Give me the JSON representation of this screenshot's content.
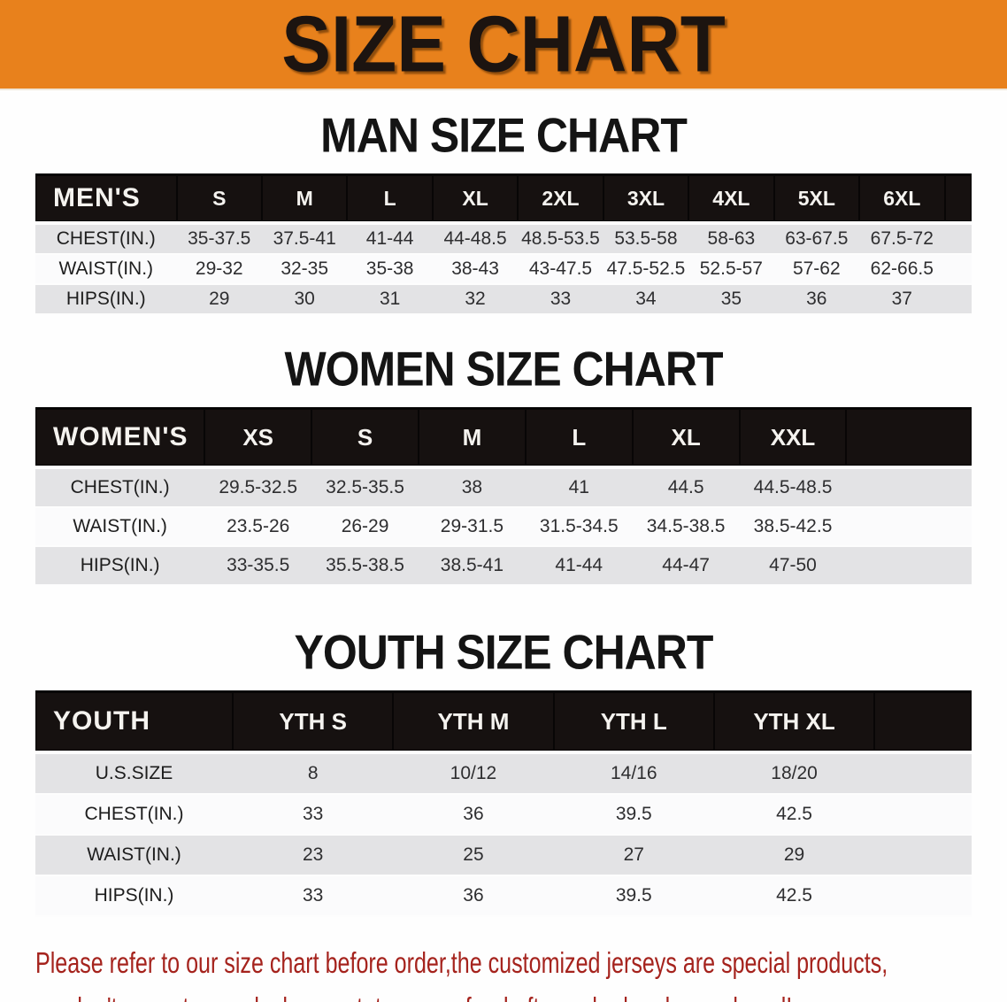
{
  "banner": {
    "title": "SIZE CHART",
    "background_color": "#e8811c",
    "text_color": "#1c1410"
  },
  "sections": {
    "men": {
      "title": "MAN SIZE CHART",
      "table": {
        "columns": [
          "MEN'S",
          "S",
          "M",
          "L",
          "XL",
          "2XL",
          "3XL",
          "4XL",
          "5XL",
          "6XL"
        ],
        "rows": [
          {
            "label": "CHEST(IN.)",
            "values": [
              "35-37.5",
              "37.5-41",
              "41-44",
              "44-48.5",
              "48.5-53.5",
              "53.5-58",
              "58-63",
              "63-67.5",
              "67.5-72"
            ]
          },
          {
            "label": "WAIST(IN.)",
            "values": [
              "29-32",
              "32-35",
              "35-38",
              "38-43",
              "43-47.5",
              "47.5-52.5",
              "52.5-57",
              "57-62",
              "62-66.5"
            ]
          },
          {
            "label": "HIPS(IN.)",
            "values": [
              "29",
              "30",
              "31",
              "32",
              "33",
              "34",
              "35",
              "36",
              "37"
            ]
          }
        ]
      }
    },
    "women": {
      "title": "WOMEN SIZE CHART",
      "table": {
        "columns": [
          "WOMEN'S",
          "XS",
          "S",
          "M",
          "L",
          "XL",
          "XXL"
        ],
        "rows": [
          {
            "label": "CHEST(IN.)",
            "values": [
              "29.5-32.5",
              "32.5-35.5",
              "38",
              "41",
              "44.5",
              "44.5-48.5"
            ]
          },
          {
            "label": "WAIST(IN.)",
            "values": [
              "23.5-26",
              "26-29",
              "29-31.5",
              "31.5-34.5",
              "34.5-38.5",
              "38.5-42.5"
            ]
          },
          {
            "label": "HIPS(IN.)",
            "values": [
              "33-35.5",
              "35.5-38.5",
              "38.5-41",
              "41-44",
              "44-47",
              "47-50"
            ]
          }
        ]
      }
    },
    "youth": {
      "title": "YOUTH SIZE CHART",
      "table": {
        "columns": [
          "YOUTH",
          "YTH S",
          "YTH M",
          "YTH L",
          "YTH XL"
        ],
        "rows": [
          {
            "label": "U.S.SIZE",
            "values": [
              "8",
              "10/12",
              "14/16",
              "18/20"
            ]
          },
          {
            "label": "CHEST(IN.)",
            "values": [
              "33",
              "36",
              "39.5",
              "42.5"
            ]
          },
          {
            "label": "WAIST(IN.)",
            "values": [
              "23",
              "25",
              "27",
              "29"
            ]
          },
          {
            "label": "HIPS(IN.)",
            "values": [
              "33",
              "36",
              "39.5",
              "42.5"
            ]
          }
        ]
      }
    }
  },
  "disclaimer": {
    "color": "#a5231d",
    "lines": [
      "Please refer to our size chart before order,the customized jerseys are special products,",
      "we don't accept cancel, change, teturn or refund after order has been placed!"
    ]
  }
}
